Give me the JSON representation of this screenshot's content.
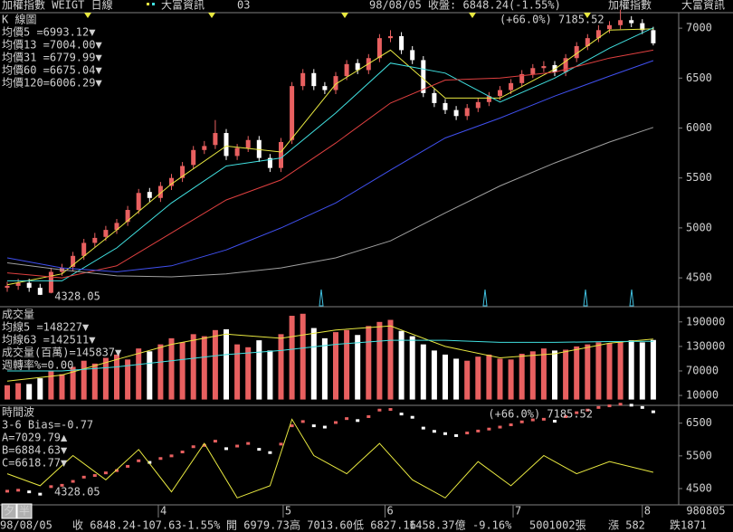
{
  "header": {
    "title": "加權指數 WEIGT 日線",
    "vendor": "大富資訊",
    "code": "03",
    "quote": "98/08/05 收盤: 6848.24(-1.55%)",
    "right_title": "加權指數",
    "right_vendor": "大富資訊"
  },
  "chart_data": [
    {
      "type": "candlestick",
      "title": "K 線圖",
      "up_color": "#e86060",
      "down_color": "#ffffff",
      "ylim": [
        4220,
        7155
      ],
      "yticks": [
        4500,
        5000,
        5500,
        6000,
        6500,
        7000
      ],
      "annotations": [
        "(+66.0%) 7185.52",
        "4328.05"
      ],
      "ohlc": {
        "open": [
          4400,
          4420,
          4450,
          4400,
          4350,
          4560,
          4610,
          4720,
          4850,
          4910,
          4980,
          5060,
          5180,
          5360,
          5300,
          5420,
          5500,
          5630,
          5780,
          5830,
          5950,
          5720,
          5800,
          5880,
          5700,
          5600,
          5880,
          6420,
          6550,
          6420,
          6380,
          6520,
          6650,
          6580,
          6700,
          6900,
          6920,
          6780,
          6680,
          6350,
          6250,
          6180,
          6120,
          6200,
          6260,
          6320,
          6380,
          6450,
          6540,
          6600,
          6630,
          6560,
          6700,
          6820,
          6900,
          6990,
          7030,
          7080,
          7050,
          6979.73
        ],
        "high": [
          4460,
          4490,
          4490,
          4440,
          4600,
          4640,
          4760,
          4890,
          4950,
          5020,
          5090,
          5220,
          5390,
          5400,
          5460,
          5540,
          5660,
          5820,
          5870,
          6080,
          5990,
          5840,
          5920,
          5920,
          5740,
          5900,
          6460,
          6590,
          6590,
          6460,
          6560,
          6680,
          6690,
          6740,
          6940,
          6980,
          6960,
          6820,
          6720,
          6390,
          6290,
          6220,
          6240,
          6300,
          6360,
          6420,
          6490,
          6580,
          6640,
          6670,
          6670,
          6740,
          6860,
          6940,
          7030,
          7070,
          7185.52,
          7120,
          7090,
          7013.6
        ],
        "low": [
          4360,
          4380,
          4360,
          4328.05,
          4345,
          4520,
          4570,
          4680,
          4810,
          4870,
          4940,
          5020,
          5140,
          5260,
          5260,
          5380,
          5460,
          5590,
          5740,
          5790,
          5680,
          5680,
          5760,
          5660,
          5560,
          5560,
          5840,
          6380,
          6380,
          6340,
          6340,
          6480,
          6540,
          6540,
          6660,
          6860,
          6740,
          6640,
          6310,
          6210,
          6140,
          6080,
          6080,
          6160,
          6220,
          6280,
          6340,
          6410,
          6500,
          6560,
          6520,
          6520,
          6660,
          6780,
          6860,
          6950,
          6990,
          7010,
          6940,
          6827.16
        ],
        "close": [
          4420,
          4450,
          4400,
          4330,
          4560,
          4600,
          4720,
          4850,
          4900,
          4980,
          5050,
          5180,
          5350,
          5300,
          5420,
          5500,
          5620,
          5780,
          5820,
          5950,
          5720,
          5800,
          5880,
          5700,
          5600,
          5860,
          6420,
          6550,
          6420,
          6380,
          6520,
          6640,
          6580,
          6700,
          6900,
          6920,
          6780,
          6680,
          6350,
          6250,
          6180,
          6120,
          6200,
          6260,
          6320,
          6380,
          6450,
          6540,
          6600,
          6620,
          6560,
          6700,
          6820,
          6900,
          6980,
          7030,
          7080,
          7050,
          6980,
          6848.24
        ]
      },
      "series": [
        {
          "name": "均價5 =6993.12▼",
          "color": "#e8e840",
          "x": [
            0,
            5,
            10,
            15,
            20,
            25,
            30,
            35,
            40,
            45,
            50,
            55,
            59
          ],
          "values": [
            4430,
            4540,
            4980,
            5440,
            5820,
            5760,
            6440,
            6780,
            6300,
            6300,
            6590,
            6980,
            6993.12
          ]
        },
        {
          "name": "均價13 =7004.00▼",
          "color": "#40e0e0",
          "x": [
            0,
            5,
            10,
            15,
            20,
            25,
            30,
            35,
            40,
            45,
            50,
            55,
            59
          ],
          "values": [
            4470,
            4470,
            4800,
            5250,
            5620,
            5700,
            6150,
            6650,
            6550,
            6260,
            6500,
            6800,
            7004.0
          ]
        },
        {
          "name": "均價31 =6779.99▼",
          "color": "#e04040",
          "x": [
            0,
            5,
            10,
            15,
            20,
            25,
            30,
            35,
            40,
            45,
            50,
            55,
            59
          ],
          "values": [
            4550,
            4500,
            4620,
            4950,
            5280,
            5480,
            5850,
            6250,
            6480,
            6500,
            6560,
            6700,
            6779.99
          ]
        },
        {
          "name": "均價60 =6675.04▼",
          "color": "#4050f0",
          "x": [
            0,
            5,
            10,
            15,
            20,
            25,
            30,
            35,
            40,
            45,
            50,
            55,
            59
          ],
          "values": [
            4700,
            4600,
            4560,
            4620,
            4780,
            5000,
            5250,
            5580,
            5900,
            6100,
            6320,
            6520,
            6675.04
          ]
        },
        {
          "name": "均價120=6006.29▼",
          "color": "#a0a0a0",
          "x": [
            0,
            5,
            10,
            15,
            20,
            25,
            30,
            35,
            40,
            45,
            50,
            55,
            59
          ],
          "values": [
            4650,
            4580,
            4520,
            4510,
            4540,
            4600,
            4700,
            4870,
            5150,
            5420,
            5650,
            5860,
            6006.29
          ]
        }
      ]
    },
    {
      "type": "bar",
      "title": "成交量",
      "ylim": [
        -12000,
        225000
      ],
      "yticks": [
        10000,
        70000,
        130000,
        190000
      ],
      "values": [
        35000,
        40000,
        38000,
        52000,
        70000,
        62000,
        80000,
        95000,
        88000,
        102000,
        110000,
        98000,
        125000,
        118000,
        135000,
        150000,
        140000,
        160000,
        155000,
        170000,
        172000,
        135000,
        128000,
        145000,
        120000,
        160000,
        205000,
        210000,
        175000,
        150000,
        165000,
        170000,
        158000,
        180000,
        190000,
        195000,
        168000,
        155000,
        135000,
        120000,
        110000,
        100000,
        95000,
        105000,
        110000,
        100000,
        98000,
        112000,
        118000,
        125000,
        120000,
        122000,
        130000,
        135000,
        140000,
        138000,
        142000,
        145000,
        140000,
        145837
      ],
      "notes": [
        {
          "text": "成交量(百萬)=145837▼",
          "color": "#d0d0d0"
        },
        {
          "text": "週轉率%=0.00",
          "color": "#e04040"
        }
      ],
      "series": [
        {
          "name": "均線5 =148227▼",
          "color": "#e8e840",
          "x": [
            0,
            5,
            10,
            15,
            20,
            25,
            30,
            35,
            40,
            45,
            50,
            55,
            59
          ],
          "values": [
            45000,
            60000,
            98000,
            135000,
            160000,
            150000,
            170000,
            180000,
            130000,
            102000,
            112000,
            138000,
            148227
          ]
        },
        {
          "name": "均線63 =142511▼",
          "color": "#40e0e0",
          "x": [
            0,
            5,
            10,
            15,
            20,
            25,
            30,
            35,
            40,
            45,
            50,
            55,
            59
          ],
          "values": [
            70000,
            70000,
            80000,
            95000,
            110000,
            120000,
            135000,
            145000,
            145000,
            140000,
            140000,
            142000,
            142511
          ]
        }
      ]
    },
    {
      "type": "oscillator",
      "title": "時間波",
      "ylim": [
        4030,
        6990
      ],
      "yticks": [
        4500,
        5500,
        6500
      ],
      "y2lim": [
        -6,
        10
      ],
      "annotations": [
        "(+66.0%) 7185.52",
        "4328.05"
      ],
      "notes": [
        {
          "text": "A=7029.79▲",
          "color": "#ffffff"
        },
        {
          "text": "B=6884.63▼",
          "color": "#e86060"
        },
        {
          "text": "C=6618.77▼",
          "color": "#60d0e0"
        }
      ],
      "series": [
        {
          "name": "3-6 Bias=-0.77",
          "color": "#e8e840",
          "axis": "y2",
          "x": [
            0,
            3,
            6,
            9,
            12,
            15,
            18,
            21,
            24,
            26,
            28,
            31,
            34,
            37,
            40,
            43,
            46,
            49,
            52,
            55,
            59
          ],
          "values": [
            -1,
            -3,
            2,
            -2,
            3,
            -4,
            4,
            -5,
            -3,
            8,
            2,
            -1,
            4,
            -2,
            -5,
            1,
            -3,
            2,
            -1,
            1,
            -0.77
          ]
        }
      ]
    }
  ],
  "xaxis": {
    "ticks": [
      {
        "value": 13.8,
        "label": "4"
      },
      {
        "value": 25.2,
        "label": "5"
      },
      {
        "value": 34.5,
        "label": "6"
      },
      {
        "value": 46.2,
        "label": "7"
      },
      {
        "value": 58,
        "label": "8"
      }
    ],
    "end_label": "980805"
  },
  "buttons": [
    "夕",
    "半"
  ],
  "footer": {
    "date": "98/08/05",
    "close": "收 6848.24",
    "change": "-107.63",
    "pct": "-1.55%",
    "open": "開 6979.73",
    "high": "高 7013.60",
    "low": "低 6827.16",
    "amount": "1458.37億",
    "amount_pct": "-9.16%",
    "shares": "5001002張",
    "up": "漲 582",
    "down": "跌1871"
  }
}
